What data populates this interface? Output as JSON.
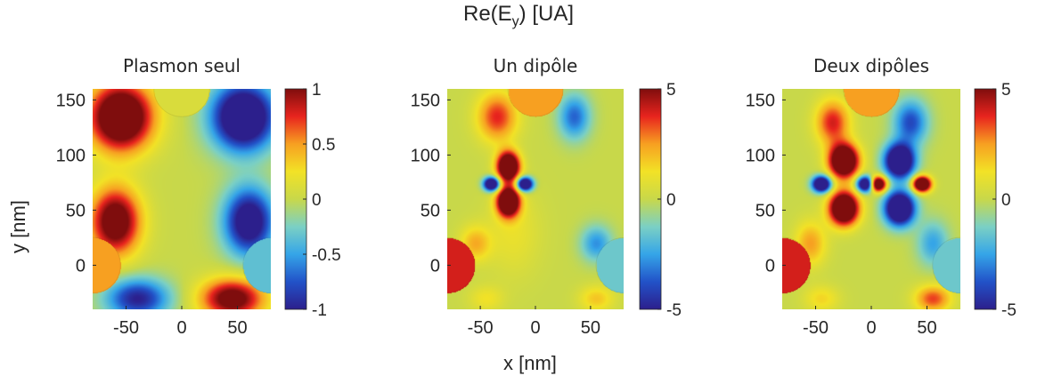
{
  "suptitle": "Re(E_y) [UA]",
  "suptitle_base": "Re(E",
  "suptitle_sub": "y",
  "suptitle_rest": ") [UA]",
  "ylabel": "y [nm]",
  "xlabel": "x [nm]",
  "colors": {
    "colormap": [
      "#2c1f8c",
      "#2252c8",
      "#35a5e8",
      "#7bd0c4",
      "#c8d84a",
      "#f2e226",
      "#f7a021",
      "#e8241e",
      "#7f0d0d"
    ],
    "particle_fill": "#a7cc5a"
  },
  "chart_data": [
    {
      "type": "heatmap",
      "title": "Plasmon seul",
      "xlim": [
        -80,
        80
      ],
      "ylim": [
        -40,
        160
      ],
      "xticks": [
        "-50",
        "0",
        "50"
      ],
      "xtick_values": [
        -50,
        0,
        50
      ],
      "yticks": [
        "150",
        "100",
        "50",
        "0"
      ],
      "ytick_values": [
        150,
        100,
        50,
        0
      ],
      "clim": [
        -1,
        1
      ],
      "cticks": [
        "1",
        "0.5",
        "0",
        "-0.5",
        "-1"
      ],
      "ctick_values": [
        1,
        0.5,
        0,
        -0.5,
        -1
      ],
      "particles": [
        {
          "x": 0,
          "y": 160,
          "r": 25,
          "value": 0.1
        },
        {
          "x": -80,
          "y": 0,
          "r": 25,
          "value": 0.5
        },
        {
          "x": 80,
          "y": 0,
          "r": 25,
          "value": -0.35
        }
      ],
      "features": [
        {
          "x": -55,
          "y": 135,
          "sx": 28,
          "sy": 30,
          "amp": 1.6
        },
        {
          "x": 55,
          "y": 135,
          "sx": 28,
          "sy": 30,
          "amp": -1.6
        },
        {
          "x": -60,
          "y": 40,
          "sx": 22,
          "sy": 30,
          "amp": 1.3
        },
        {
          "x": 60,
          "y": 40,
          "sx": 22,
          "sy": 30,
          "amp": -1.3
        },
        {
          "x": -40,
          "y": -30,
          "sx": 28,
          "sy": 18,
          "amp": -1.0
        },
        {
          "x": 45,
          "y": -30,
          "sx": 28,
          "sy": 18,
          "amp": 1.2
        }
      ]
    },
    {
      "type": "heatmap",
      "title": "Un dipôle",
      "xlim": [
        -80,
        80
      ],
      "ylim": [
        -40,
        160
      ],
      "xticks": [
        "-50",
        "0",
        "50"
      ],
      "xtick_values": [
        -50,
        0,
        50
      ],
      "yticks": [
        "150",
        "100",
        "50",
        "0"
      ],
      "ytick_values": [
        150,
        100,
        50,
        0
      ],
      "clim": [
        -5,
        5
      ],
      "cticks": [
        "5",
        "0",
        "-5"
      ],
      "ctick_values": [
        5,
        0,
        -5
      ],
      "particles": [
        {
          "x": 0,
          "y": 160,
          "r": 25,
          "value": 0.5
        },
        {
          "x": -80,
          "y": 0,
          "r": 25,
          "value": 0.8
        },
        {
          "x": 80,
          "y": 0,
          "r": 25,
          "value": -0.3
        }
      ],
      "features": [
        {
          "x": -25,
          "y": 90,
          "sx": 10,
          "sy": 13,
          "amp": 9
        },
        {
          "x": -25,
          "y": 58,
          "sx": 10,
          "sy": 13,
          "amp": 9
        },
        {
          "x": -40,
          "y": 74,
          "sx": 7,
          "sy": 6,
          "amp": -9
        },
        {
          "x": -10,
          "y": 74,
          "sx": 7,
          "sy": 6,
          "amp": -9
        },
        {
          "x": -35,
          "y": 135,
          "sx": 18,
          "sy": 22,
          "amp": 3.8
        },
        {
          "x": 35,
          "y": 135,
          "sx": 14,
          "sy": 20,
          "amp": -3.5
        },
        {
          "x": -55,
          "y": 20,
          "sx": 14,
          "sy": 16,
          "amp": 2.2
        },
        {
          "x": 55,
          "y": 20,
          "sx": 14,
          "sy": 16,
          "amp": -2.8
        },
        {
          "x": 55,
          "y": -30,
          "sx": 16,
          "sy": 12,
          "amp": 1.8
        },
        {
          "x": -45,
          "y": -30,
          "sx": 16,
          "sy": 12,
          "amp": 1.2
        },
        {
          "x": -20,
          "y": 30,
          "sx": 25,
          "sy": 40,
          "amp": 1.0
        }
      ]
    },
    {
      "type": "heatmap",
      "title": "Deux dipôles",
      "xlim": [
        -80,
        80
      ],
      "ylim": [
        -40,
        160
      ],
      "xticks": [
        "-50",
        "0",
        "50"
      ],
      "xtick_values": [
        -50,
        0,
        50
      ],
      "yticks": [
        "150",
        "100",
        "50",
        "0"
      ],
      "ytick_values": [
        150,
        100,
        50,
        0
      ],
      "clim": [
        -5,
        5
      ],
      "cticks": [
        "5",
        "0",
        "-5"
      ],
      "ctick_values": [
        5,
        0,
        -5
      ],
      "particles": [
        {
          "x": 0,
          "y": 160,
          "r": 25,
          "value": 0.5
        },
        {
          "x": -80,
          "y": 0,
          "r": 25,
          "value": 0.8
        },
        {
          "x": 80,
          "y": 0,
          "r": 25,
          "value": -0.3
        }
      ],
      "features": [
        {
          "x": -25,
          "y": 95,
          "sx": 13,
          "sy": 15,
          "amp": 9
        },
        {
          "x": -25,
          "y": 52,
          "sx": 13,
          "sy": 15,
          "amp": 9
        },
        {
          "x": -45,
          "y": 74,
          "sx": 8,
          "sy": 7,
          "amp": -9
        },
        {
          "x": -5,
          "y": 74,
          "sx": 8,
          "sy": 7,
          "amp": -9
        },
        {
          "x": 25,
          "y": 95,
          "sx": 13,
          "sy": 15,
          "amp": -9
        },
        {
          "x": 25,
          "y": 52,
          "sx": 13,
          "sy": 15,
          "amp": -9
        },
        {
          "x": 45,
          "y": 74,
          "sx": 8,
          "sy": 7,
          "amp": 9
        },
        {
          "x": 5,
          "y": 74,
          "sx": 8,
          "sy": 7,
          "amp": 9
        },
        {
          "x": -35,
          "y": 130,
          "sx": 15,
          "sy": 20,
          "amp": 4
        },
        {
          "x": 35,
          "y": 130,
          "sx": 15,
          "sy": 20,
          "amp": -4
        },
        {
          "x": -55,
          "y": 20,
          "sx": 14,
          "sy": 20,
          "amp": 2.5
        },
        {
          "x": 55,
          "y": 20,
          "sx": 14,
          "sy": 20,
          "amp": -2.5
        },
        {
          "x": 55,
          "y": -30,
          "sx": 16,
          "sy": 12,
          "amp": 3.5
        },
        {
          "x": -45,
          "y": -30,
          "sx": 16,
          "sy": 12,
          "amp": 1.5
        }
      ]
    }
  ]
}
